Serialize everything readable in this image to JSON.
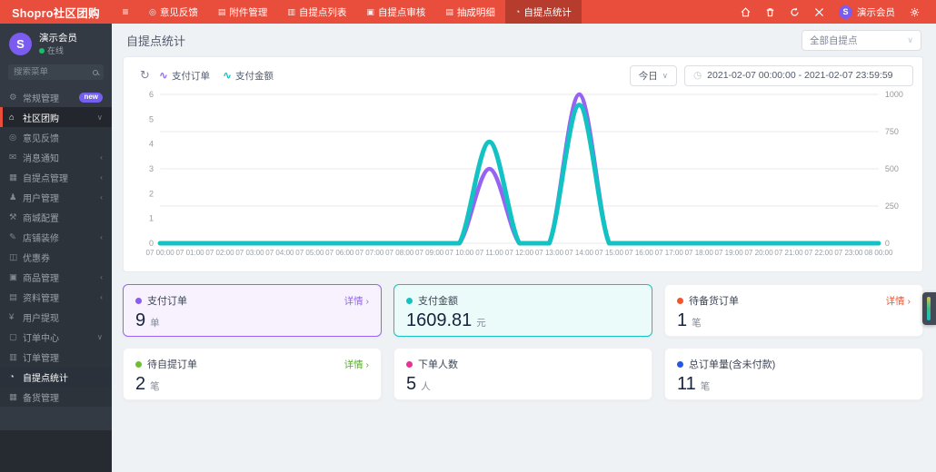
{
  "navbar": {
    "logo": "Shopro社区团购",
    "hamburger_icon": "≡",
    "tabs": [
      {
        "name": "feedback",
        "label": "意见反馈",
        "icon": "◎",
        "active": false
      },
      {
        "name": "attachments",
        "label": "附件管理",
        "icon": "▤",
        "active": false
      },
      {
        "name": "pickup-list",
        "label": "自提点列表",
        "icon": "▥",
        "active": false
      },
      {
        "name": "pickup-audit",
        "label": "自提点审核",
        "icon": "▣",
        "active": false
      },
      {
        "name": "commission-detail",
        "label": "抽成明细",
        "icon": "▤",
        "active": false
      },
      {
        "name": "pickup-stats",
        "label": "自提点统计",
        "icon": "◔",
        "active": true
      }
    ],
    "user_name": "演示会员",
    "avatar_letter": "S"
  },
  "sidebar": {
    "user": {
      "name": "演示会员",
      "status": "在线",
      "avatar_letter": "S"
    },
    "search_placeholder": "搜索菜单",
    "menu": [
      {
        "name": "general",
        "label": "常规管理",
        "icon": "⚙",
        "badge": "new"
      },
      {
        "name": "community",
        "label": "社区团购",
        "icon": "⌂",
        "expand": "down",
        "parent_active": true
      },
      {
        "name": "feedback",
        "label": "意见反馈",
        "icon": "◎",
        "sub": true
      },
      {
        "name": "notifications",
        "label": "消息通知",
        "icon": "✉",
        "expand": "left",
        "sub": true
      },
      {
        "name": "pickup-manage",
        "label": "自提点管理",
        "icon": "▦",
        "expand": "left",
        "sub": true
      },
      {
        "name": "user-manage",
        "label": "用户管理",
        "icon": "♟",
        "expand": "left",
        "sub": true
      },
      {
        "name": "mall-config",
        "label": "商城配置",
        "icon": "⚒",
        "sub": true
      },
      {
        "name": "shop-decorate",
        "label": "店铺装修",
        "icon": "✎",
        "expand": "left",
        "sub": true
      },
      {
        "name": "coupons",
        "label": "优惠券",
        "icon": "◫",
        "sub": true
      },
      {
        "name": "goods-manage",
        "label": "商品管理",
        "icon": "▣",
        "expand": "left",
        "sub": true
      },
      {
        "name": "materials",
        "label": "资料管理",
        "icon": "▤",
        "expand": "left",
        "sub": true
      },
      {
        "name": "withdraw",
        "label": "用户提现",
        "icon": "¥",
        "sub": true
      },
      {
        "name": "order-center",
        "label": "订单中心",
        "icon": "▢",
        "expand": "down",
        "sub": true
      },
      {
        "name": "order-manage",
        "label": "订单管理",
        "icon": "▥",
        "sub": true
      },
      {
        "name": "pickup-stats",
        "label": "自提点统计",
        "icon": "◔",
        "sub": true,
        "active": true
      },
      {
        "name": "stocking",
        "label": "备货管理",
        "icon": "▦",
        "sub": true
      }
    ]
  },
  "page": {
    "title": "自提点统计",
    "store_filter": "全部自提点"
  },
  "toolbar": {
    "refresh_icon": "↻",
    "legend": [
      {
        "name": "paid-orders",
        "label": "支付订单",
        "color": "#9565f2"
      },
      {
        "name": "paid-amount",
        "label": "支付金额",
        "color": "#13c2c2"
      }
    ],
    "range_label": "今日",
    "date_range": "2021-02-07 00:00:00 - 2021-02-07 23:59:59"
  },
  "chart_data": {
    "type": "line",
    "x": [
      "07 00:00",
      "07 01:00",
      "07 02:00",
      "07 03:00",
      "07 04:00",
      "07 05:00",
      "07 06:00",
      "07 07:00",
      "07 08:00",
      "07 09:00",
      "07 10:00",
      "07 11:00",
      "07 12:00",
      "07 13:00",
      "07 14:00",
      "07 15:00",
      "07 16:00",
      "07 17:00",
      "07 18:00",
      "07 19:00",
      "07 20:00",
      "07 21:00",
      "07 22:00",
      "07 23:00",
      "08 00:00"
    ],
    "series": [
      {
        "name": "支付订单",
        "color": "#9565f2",
        "yaxis": "left",
        "smooth": true,
        "values": [
          0,
          0,
          0,
          0,
          0,
          0,
          0,
          0,
          0,
          0,
          0,
          3,
          0,
          0,
          6,
          0,
          0,
          0,
          0,
          0,
          0,
          0,
          0,
          0,
          0
        ]
      },
      {
        "name": "支付金额",
        "color": "#13c2c2",
        "yaxis": "right",
        "smooth": true,
        "values": [
          0,
          0,
          0,
          0,
          0,
          0,
          0,
          0,
          0,
          0,
          0,
          680.81,
          0,
          0,
          929,
          0,
          0,
          0,
          0,
          0,
          0,
          0,
          0,
          0,
          0
        ]
      }
    ],
    "yleft": {
      "min": 0,
      "max": 6,
      "ticks": [
        0,
        1,
        2,
        3,
        4,
        5,
        6
      ]
    },
    "yright": {
      "min": 0,
      "max": 1000,
      "ticks": [
        0,
        250,
        500,
        750,
        1000
      ]
    },
    "grid": true,
    "legend_position": "top-left"
  },
  "stats": {
    "detail_label": "详情",
    "cards": [
      {
        "name": "paid-orders",
        "label": "支付订单",
        "value": "9",
        "unit": "单",
        "dot": "#8c5cf0",
        "detail": true,
        "detail_color": "#9565f2",
        "bg": "#f7f2fe",
        "border": "#9565f2"
      },
      {
        "name": "paid-amount",
        "label": "支付金额",
        "value": "1609.81",
        "unit": "元",
        "dot": "#13c2c2",
        "detail": false,
        "bg": "#eafbfa",
        "border": "#13c2c2"
      },
      {
        "name": "pending-stock-orders",
        "label": "待备货订单",
        "value": "1",
        "unit": "笔",
        "dot": "#f4542c",
        "detail": true,
        "detail_color": "#f4542c",
        "bg": "#ffffff",
        "border": ""
      },
      {
        "name": "pending-pickup-orders",
        "label": "待自提订单",
        "value": "2",
        "unit": "笔",
        "dot": "#6cbf2d",
        "detail": true,
        "detail_color": "#52b41a",
        "bg": "#ffffff",
        "border": ""
      },
      {
        "name": "order-users",
        "label": "下单人数",
        "value": "5",
        "unit": "人",
        "dot": "#ea2f96",
        "detail": false,
        "bg": "#ffffff",
        "border": ""
      },
      {
        "name": "total-orders",
        "label": "总订单量(含未付款)",
        "value": "11",
        "unit": "笔",
        "dot": "#2457e5",
        "detail": false,
        "bg": "#ffffff",
        "border": ""
      }
    ]
  }
}
